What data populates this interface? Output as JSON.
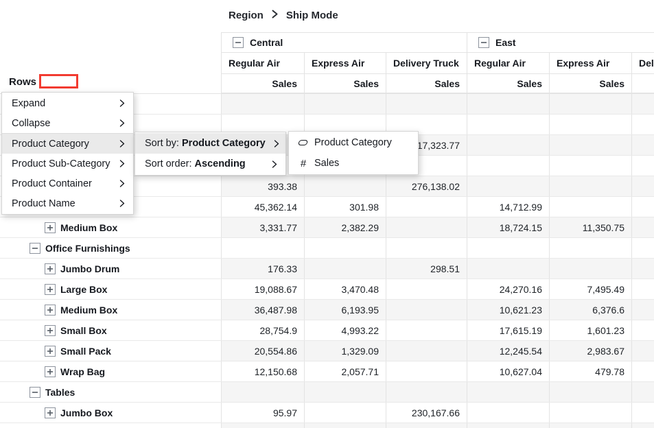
{
  "breadcrumb": {
    "items": [
      "Region",
      "Ship Mode"
    ]
  },
  "corner": {
    "rows_label": "Rows"
  },
  "pivot": {
    "column_groups": [
      {
        "label": "Central",
        "collapsible": true
      },
      {
        "label": "East",
        "collapsible": true
      }
    ],
    "columns": [
      "Regular Air",
      "Express Air",
      "Delivery Truck",
      "Regular Air",
      "Express Air",
      "Delivery Truck"
    ],
    "measure_label": "Sales",
    "rows": [
      {
        "label": "",
        "indent": 0,
        "icon": null,
        "values": [
          "",
          "",
          "",
          "",
          "",
          ""
        ]
      },
      {
        "label": "",
        "indent": 0,
        "icon": null,
        "values": [
          "",
          "",
          "",
          "",
          "",
          ""
        ]
      },
      {
        "label": "",
        "indent": 0,
        "icon": null,
        "values": [
          "",
          "",
          "17,323.77",
          "",
          "",
          ""
        ]
      },
      {
        "label": "",
        "indent": 0,
        "icon": null,
        "values": [
          "",
          "",
          "",
          "",
          "",
          ""
        ]
      },
      {
        "label": "",
        "indent": 0,
        "icon": null,
        "values": [
          "393.38",
          "",
          "276,138.02",
          "",
          "",
          ""
        ]
      },
      {
        "label": "",
        "indent": 0,
        "icon": null,
        "values": [
          "45,362.14",
          "301.98",
          "",
          "14,712.99",
          "",
          ""
        ]
      },
      {
        "label": "Medium Box",
        "indent": 2,
        "icon": "plus",
        "values": [
          "3,331.77",
          "2,382.29",
          "",
          "18,724.15",
          "11,350.75",
          ""
        ]
      },
      {
        "label": "Office Furnishings",
        "indent": 1,
        "icon": "minus",
        "values": [
          "",
          "",
          "",
          "",
          "",
          ""
        ]
      },
      {
        "label": "Jumbo Drum",
        "indent": 2,
        "icon": "plus",
        "values": [
          "176.33",
          "",
          "298.51",
          "",
          "",
          ""
        ]
      },
      {
        "label": "Large Box",
        "indent": 2,
        "icon": "plus",
        "values": [
          "19,088.67",
          "3,470.48",
          "",
          "24,270.16",
          "7,495.49",
          ""
        ]
      },
      {
        "label": "Medium Box",
        "indent": 2,
        "icon": "plus",
        "values": [
          "36,487.98",
          "6,193.95",
          "",
          "10,621.23",
          "6,376.6",
          ""
        ]
      },
      {
        "label": "Small Box",
        "indent": 2,
        "icon": "plus",
        "values": [
          "28,754.9",
          "4,993.22",
          "",
          "17,615.19",
          "1,601.23",
          ""
        ]
      },
      {
        "label": "Small Pack",
        "indent": 2,
        "icon": "plus",
        "values": [
          "20,554.86",
          "1,329.09",
          "",
          "12,245.54",
          "2,983.67",
          ""
        ]
      },
      {
        "label": "Wrap Bag",
        "indent": 2,
        "icon": "plus",
        "values": [
          "12,150.68",
          "2,057.71",
          "",
          "10,627.04",
          "479.78",
          ""
        ]
      },
      {
        "label": "Tables",
        "indent": 1,
        "icon": "minus",
        "values": [
          "",
          "",
          "",
          "",
          "",
          ""
        ]
      },
      {
        "label": "Jumbo Box",
        "indent": 2,
        "icon": "plus",
        "values": [
          "95.97",
          "",
          "230,167.66",
          "",
          "",
          ""
        ]
      },
      {
        "label": "",
        "indent": 2,
        "icon": "plus",
        "values": [
          "",
          "",
          "",
          "",
          "",
          ""
        ]
      }
    ]
  },
  "context_menu": {
    "items": [
      {
        "label": "Expand",
        "submenu": true,
        "highlighted": false,
        "separator_before": false
      },
      {
        "label": "Collapse",
        "submenu": true,
        "highlighted": false,
        "separator_before": false
      },
      {
        "label": "Product Category",
        "submenu": true,
        "highlighted": true,
        "separator_before": true
      },
      {
        "label": "Product Sub-Category",
        "submenu": true,
        "highlighted": false,
        "separator_before": false
      },
      {
        "label": "Product Container",
        "submenu": true,
        "highlighted": false,
        "separator_before": false
      },
      {
        "label": "Product Name",
        "submenu": true,
        "highlighted": false,
        "separator_before": false
      }
    ]
  },
  "sort_menu": {
    "items": [
      {
        "prefix": "Sort by: ",
        "value": "Product Category",
        "submenu": true,
        "highlighted": true
      },
      {
        "prefix": "Sort order: ",
        "value": "Ascending",
        "submenu": true,
        "highlighted": false
      }
    ]
  },
  "field_menu": {
    "items": [
      {
        "label": "Product Category",
        "icon": "dimension-icon"
      },
      {
        "label": "Sales",
        "icon": "measure-hash-icon"
      }
    ]
  },
  "colors": {
    "text": "#16191f",
    "grid_border": "#e3e3e3",
    "row_band": "#f5f5f5",
    "menu_highlight": "#eaeaea",
    "annotation_red": "#f23b30"
  }
}
